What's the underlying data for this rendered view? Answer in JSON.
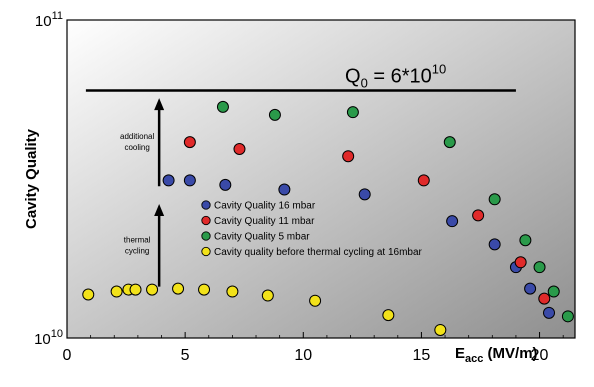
{
  "chart_data": {
    "type": "scatter",
    "ylabel": "Cavity Quality",
    "xlabel_main": "E",
    "xlabel_sub": "acc",
    "xlabel_unit": " (MV/m)",
    "xlim": [
      0,
      21.5
    ],
    "ylim": [
      10000000000.0,
      100000000000.0
    ],
    "y_scale": "log",
    "x_ticks": [
      "0",
      "5",
      "10",
      "15",
      "20"
    ],
    "y_tick_labels": [
      {
        "base": "10",
        "exp": "11"
      },
      {
        "base": "10",
        "exp": "10"
      }
    ],
    "background": "gradient white-to-gray",
    "reference_line": {
      "y": 60000000000.0,
      "x_start": 0.8,
      "x_end": 19,
      "label_main": "Q",
      "label_sub": "0",
      "label_rest": " = 6*10",
      "label_sup": "10"
    },
    "annotations": [
      {
        "text_lines": [
          "additional",
          "cooling"
        ],
        "arrow_x": 3.9,
        "arrow_from": 30000000000.0,
        "arrow_to": 56000000000.0
      },
      {
        "text_lines": [
          "thermal",
          "cycling"
        ],
        "arrow_x": 3.9,
        "arrow_from": 14500000000.0,
        "arrow_to": 26000000000.0
      }
    ],
    "legend_position": "center",
    "series": [
      {
        "name": "Cavity Quality 16 mbar",
        "color": "#3a4aa8",
        "points": [
          [
            4.3,
            31300000000.0
          ],
          [
            5.2,
            31300000000.0
          ],
          [
            6.7,
            30300000000.0
          ],
          [
            9.2,
            29300000000.0
          ],
          [
            12.6,
            28300000000.0
          ],
          [
            16.3,
            23300000000.0
          ],
          [
            18.1,
            19700000000.0
          ],
          [
            19.0,
            16700000000.0
          ],
          [
            19.6,
            14300000000.0
          ],
          [
            20.4,
            12000000000.0
          ]
        ]
      },
      {
        "name": "Cavity Quality 11 mbar",
        "color": "#e02a2a",
        "points": [
          [
            5.2,
            41300000000.0
          ],
          [
            7.3,
            39300000000.0
          ],
          [
            11.9,
            37300000000.0
          ],
          [
            15.1,
            31300000000.0
          ],
          [
            17.4,
            24300000000.0
          ],
          [
            19.2,
            17300000000.0
          ],
          [
            20.2,
            13300000000.0
          ]
        ]
      },
      {
        "name": "Cavity Quality 5 mbar",
        "color": "#2a9a4a",
        "points": [
          [
            6.6,
            53300000000.0
          ],
          [
            8.8,
            50300000000.0
          ],
          [
            12.1,
            51300000000.0
          ],
          [
            16.2,
            41300000000.0
          ],
          [
            18.1,
            27300000000.0
          ],
          [
            19.4,
            20300000000.0
          ],
          [
            20.0,
            16700000000.0
          ],
          [
            20.6,
            14000000000.0
          ],
          [
            21.2,
            11700000000.0
          ]
        ]
      },
      {
        "name": "Cavity quality before thermal cycling at 16mbar",
        "color": "#f2e21a",
        "points": [
          [
            0.9,
            13700000000.0
          ],
          [
            2.1,
            14000000000.0
          ],
          [
            2.6,
            14200000000.0
          ],
          [
            2.9,
            14200000000.0
          ],
          [
            3.6,
            14200000000.0
          ],
          [
            4.7,
            14300000000.0
          ],
          [
            5.8,
            14200000000.0
          ],
          [
            7.0,
            14000000000.0
          ],
          [
            8.5,
            13600000000.0
          ],
          [
            10.5,
            13100000000.0
          ],
          [
            13.6,
            11800000000.0
          ],
          [
            15.8,
            10600000000.0
          ]
        ]
      }
    ]
  }
}
